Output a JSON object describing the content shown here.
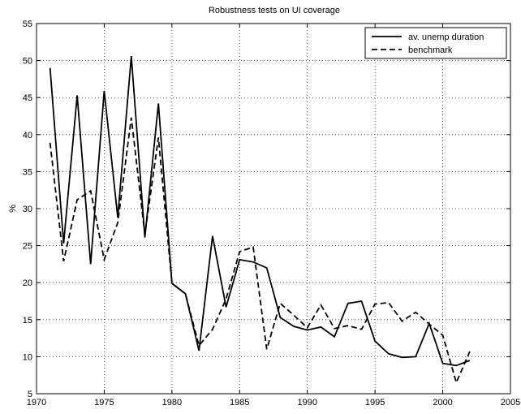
{
  "chart_data": {
    "type": "line",
    "title": "Robustness tests on UI coverage",
    "xlabel": "",
    "ylabel": "%",
    "xlim": [
      1970,
      2005
    ],
    "ylim": [
      5,
      55
    ],
    "xticks": [
      "1970",
      "1975",
      "1980",
      "1985",
      "1990",
      "1995",
      "2000",
      "2005"
    ],
    "yticks": [
      "5",
      "10",
      "15",
      "20",
      "25",
      "30",
      "35",
      "40",
      "45",
      "50",
      "55"
    ],
    "legend_position": "top-right",
    "grid": true,
    "x": [
      1971,
      1972,
      1973,
      1974,
      1975,
      1976,
      1977,
      1978,
      1979,
      1980,
      1981,
      1982,
      1983,
      1984,
      1985,
      1986,
      1987,
      1988,
      1989,
      1990,
      1991,
      1992,
      1993,
      1994,
      1995,
      1996,
      1997,
      1998,
      1999,
      2000,
      2001,
      2002
    ],
    "series": [
      {
        "name": "av. unemp duration",
        "style": "solid",
        "values": [
          49.0,
          25.3,
          45.3,
          22.5,
          45.9,
          28.8,
          50.6,
          26.1,
          44.2,
          19.9,
          18.5,
          10.8,
          26.3,
          16.7,
          23.1,
          22.8,
          22.0,
          15.3,
          14.1,
          13.6,
          14.0,
          12.7,
          17.2,
          17.5,
          12.1,
          10.4,
          9.9,
          10.0,
          14.5,
          9.1,
          8.8,
          9.5
        ]
      },
      {
        "name": "benchmark",
        "style": "dashed",
        "values": [
          38.9,
          22.9,
          31.2,
          32.4,
          23.1,
          28.1,
          42.3,
          26.5,
          39.6,
          19.9,
          18.5,
          11.5,
          13.7,
          17.8,
          24.2,
          24.8,
          11.0,
          17.2,
          15.6,
          13.9,
          17.0,
          13.8,
          14.2,
          13.7,
          17.1,
          17.3,
          14.8,
          16.0,
          14.4,
          12.9,
          6.5,
          10.7
        ]
      }
    ]
  }
}
